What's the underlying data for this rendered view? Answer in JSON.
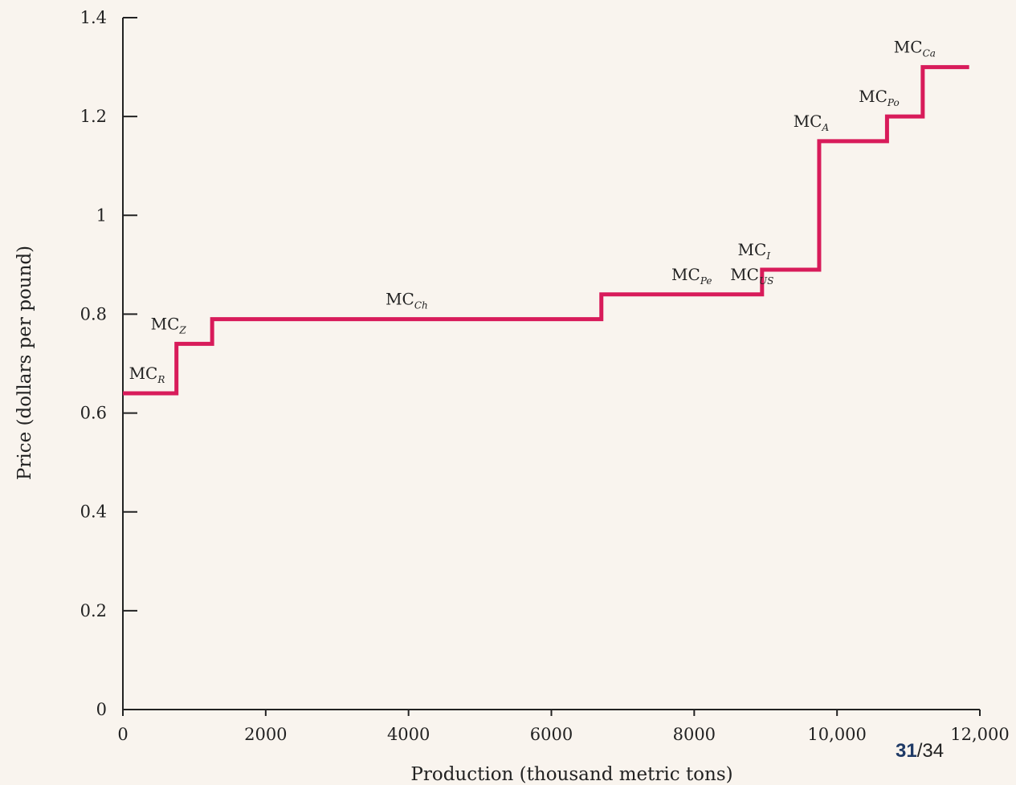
{
  "chart_data": {
    "type": "line",
    "subtype": "step",
    "xlabel": "Production (thousand metric tons)",
    "ylabel": "Price (dollars per pound)",
    "xlim": [
      0,
      12000
    ],
    "ylim": [
      0,
      1.4
    ],
    "x_ticks": [
      "0",
      "2000",
      "4000",
      "6000",
      "8000",
      "10,000",
      "12,000"
    ],
    "y_ticks": [
      "0",
      "0.2",
      "0.4",
      "0.6",
      "0.8",
      "1",
      "1.2",
      "1.4"
    ],
    "line_color": "#d81b5a",
    "steps": [
      {
        "label": "MC",
        "sub": "R",
        "x0": 0,
        "x1": 750,
        "y": 0.64
      },
      {
        "label": "MC",
        "sub": "Z",
        "x0": 750,
        "x1": 1250,
        "y": 0.74
      },
      {
        "label": "MC",
        "sub": "Ch",
        "x0": 1250,
        "x1": 6700,
        "y": 0.79
      },
      {
        "label": "MC",
        "sub": "Pe",
        "x0": 6700,
        "x1": 8950,
        "y": 0.84
      },
      {
        "label": "MC",
        "sub": "US",
        "x0": 6700,
        "x1": 8950,
        "y": 0.84
      },
      {
        "label": "MC",
        "sub": "I",
        "x0": 8950,
        "x1": 9750,
        "y": 0.89
      },
      {
        "label": "MC",
        "sub": "A",
        "x0": 9750,
        "x1": 10700,
        "y": 1.15
      },
      {
        "label": "MC",
        "sub": "Po",
        "x0": 10700,
        "x1": 11200,
        "y": 1.2
      },
      {
        "label": "MC",
        "sub": "Ca",
        "x0": 11200,
        "x1": 11850,
        "y": 1.3
      }
    ]
  },
  "page": {
    "current": "31",
    "total": "/34"
  }
}
